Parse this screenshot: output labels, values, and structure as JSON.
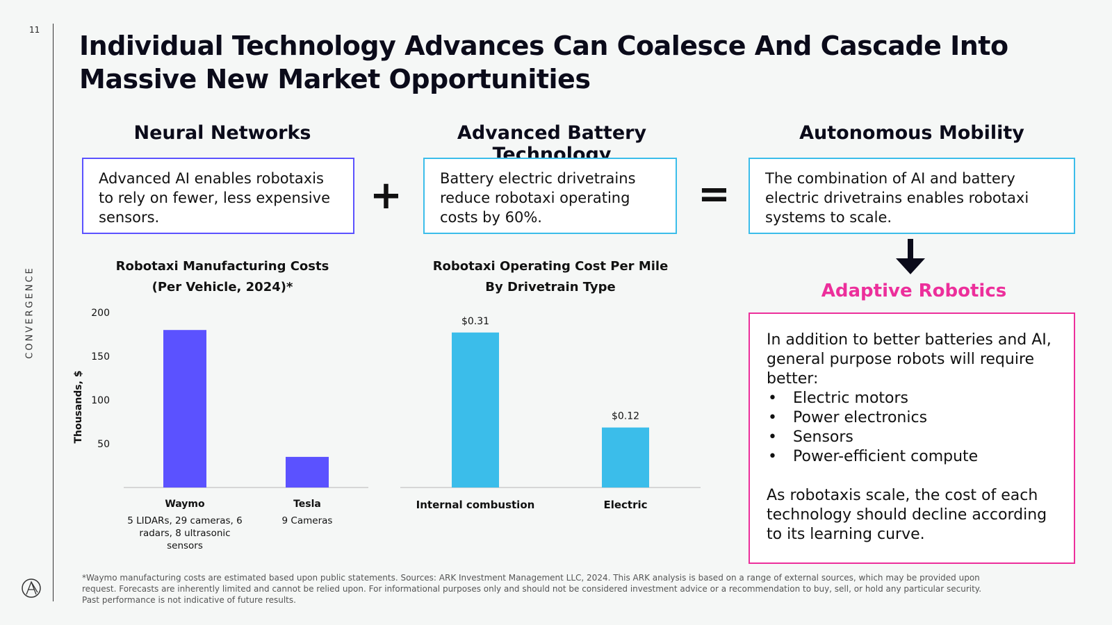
{
  "page_number": "11",
  "section_label": "CONVERGENCE",
  "title": "Individual Technology Advances Can Coalesce And Cascade Into Massive New Market Opportunities",
  "columns": [
    {
      "heading": "Neural Networks",
      "text": "Advanced AI enables robotaxis to rely on fewer, less expensive sensors.",
      "color": "#5b52ff"
    },
    {
      "heading": "Advanced Battery Technology",
      "text": "Battery electric drivetrains reduce robotaxi operating costs by 60%.",
      "color": "#3bbdea"
    },
    {
      "heading": "Autonomous Mobility",
      "text": "The combination of AI and battery electric drivetrains enables robotaxi systems to scale.",
      "color": "#3bbdea"
    }
  ],
  "operators": {
    "plus": "+",
    "equals": "="
  },
  "adaptive": {
    "heading": "Adaptive Robotics",
    "intro": "In addition to better batteries and AI, general purpose robots will require better:",
    "bullets": [
      "Electric motors",
      "Power electronics",
      "Sensors",
      "Power-efficient compute"
    ],
    "outro": "As robotaxis scale, the cost of each technology should decline according to its learning curve.",
    "color": "#ec2f9b"
  },
  "chart_data": [
    {
      "type": "bar",
      "title": "Robotaxi Manufacturing Costs (Per Vehicle, 2024)*",
      "title_lines": [
        "Robotaxi Manufacturing Costs",
        "(Per Vehicle, 2024)*"
      ],
      "ylabel": "Thousands, $",
      "ylim": [
        0,
        200
      ],
      "yticks": [
        50,
        100,
        150,
        200
      ],
      "categories": [
        "Waymo",
        "Tesla"
      ],
      "category_notes": [
        "5 LIDARs, 29 cameras, 6 radars, 8 ultrasonic sensors",
        "9 Cameras"
      ],
      "values": [
        180,
        35
      ],
      "color": "#5b52ff"
    },
    {
      "type": "bar",
      "title": "Robotaxi Operating Cost Per Mile By Drivetrain Type",
      "title_lines": [
        "Robotaxi Operating Cost Per Mile",
        "By Drivetrain Type"
      ],
      "ylim": [
        0,
        0.35
      ],
      "categories": [
        "Internal combustion",
        "Electric"
      ],
      "values": [
        0.31,
        0.12
      ],
      "value_labels": [
        "$0.31",
        "$0.12"
      ],
      "color": "#3bbdea"
    }
  ],
  "footnote": "*Waymo manufacturing costs are estimated based upon public statements. Sources: ARK Investment Management LLC, 2024. This ARK analysis is based on a range of external sources, which may be provided upon request. Forecasts are inherently limited and cannot be relied upon. For informational purposes only and should not be considered investment advice or a recommendation to buy, sell, or hold any particular security. Past performance is not indicative of future results."
}
